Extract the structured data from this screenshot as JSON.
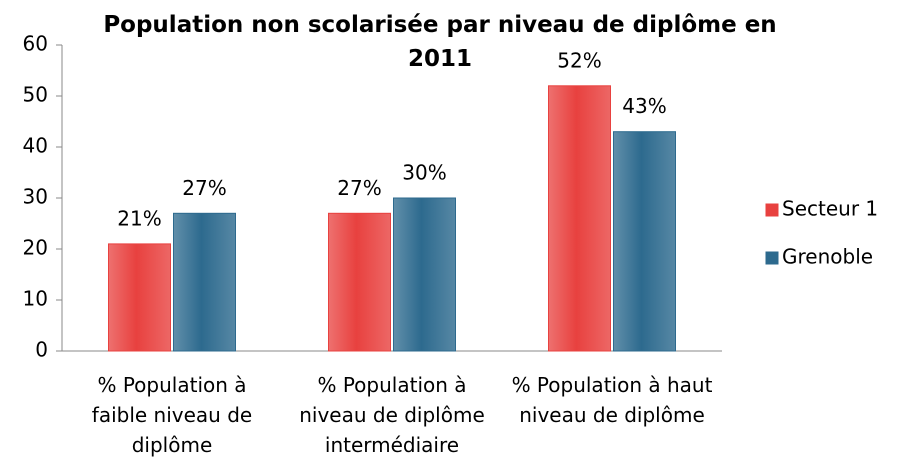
{
  "chart_data": {
    "type": "bar",
    "title": "Population non scolarisée par niveau de diplôme en 2011",
    "categories": [
      "% Population à faible niveau de diplôme",
      "% Population à niveau de diplôme intermédiaire",
      "% Population à haut niveau de diplôme"
    ],
    "series": [
      {
        "name": "Secteur 1",
        "color": "#e8413f",
        "values": [
          21,
          27,
          52
        ],
        "value_labels": [
          "21%",
          "27%",
          "52%"
        ]
      },
      {
        "name": "Grenoble",
        "color": "#2d6a8e",
        "values": [
          27,
          30,
          43
        ],
        "value_labels": [
          "27%",
          "30%",
          "43%"
        ]
      }
    ],
    "ylim": [
      0,
      60
    ],
    "yticks": [
      0,
      10,
      20,
      30,
      40,
      50,
      60
    ],
    "grid": false,
    "legend": "right"
  }
}
